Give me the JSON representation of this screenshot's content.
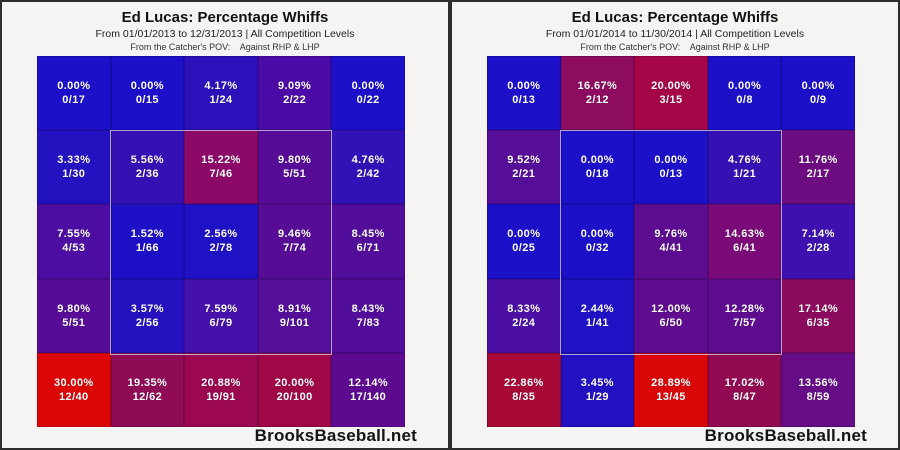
{
  "footer_brand": "BrooksBaseball.net",
  "colors": {
    "low_blue": "#1c10c9",
    "mid_purple": "#5e0c8f",
    "high_red": "#dd0606",
    "panel_bg": "#f5f4f3",
    "panel_border": "#2d2d2d",
    "strike_zone_outline": "#dad5e8",
    "cell_text": "#ffffff"
  },
  "chart_data": [
    {
      "type": "heatmap",
      "title": "Ed Lucas: Percentage Whiffs",
      "subtitle": "From 01/01/2013 to 12/31/2013 | All Competition Levels",
      "pov_line": "From the Catcher's POV:    Against RHP & LHP",
      "rows": 5,
      "cols": 5,
      "legend": "cells show whiff percentage and whiffs/pitches, blue=low red=high, strike zone outlined over center 3x3",
      "cells": [
        [
          {
            "pct": "0.00%",
            "frac": "0/17",
            "value": 0.0,
            "color": "#1c10c9"
          },
          {
            "pct": "0.00%",
            "frac": "0/15",
            "value": 0.0,
            "color": "#1c10c9"
          },
          {
            "pct": "4.17%",
            "frac": "1/24",
            "value": 4.17,
            "color": "#2c11ba"
          },
          {
            "pct": "9.09%",
            "frac": "2/22",
            "value": 9.09,
            "color": "#4c0ba6"
          },
          {
            "pct": "0.00%",
            "frac": "0/22",
            "value": 0.0,
            "color": "#1c10c9"
          }
        ],
        [
          {
            "pct": "3.33%",
            "frac": "1/30",
            "value": 3.33,
            "color": "#2411c0"
          },
          {
            "pct": "5.56%",
            "frac": "2/36",
            "value": 5.56,
            "color": "#3511b3"
          },
          {
            "pct": "15.22%",
            "frac": "7/46",
            "value": 15.22,
            "color": "#8c0968"
          },
          {
            "pct": "9.80%",
            "frac": "5/51",
            "value": 9.8,
            "color": "#560c97"
          },
          {
            "pct": "4.76%",
            "frac": "2/42",
            "value": 4.76,
            "color": "#3112b6"
          }
        ],
        [
          {
            "pct": "7.55%",
            "frac": "4/53",
            "value": 7.55,
            "color": "#4e0da2"
          },
          {
            "pct": "1.52%",
            "frac": "1/66",
            "value": 1.52,
            "color": "#1d10c7"
          },
          {
            "pct": "2.56%",
            "frac": "2/78",
            "value": 2.56,
            "color": "#1f11c4"
          },
          {
            "pct": "9.46%",
            "frac": "7/74",
            "value": 9.46,
            "color": "#570c95"
          },
          {
            "pct": "8.45%",
            "frac": "6/71",
            "value": 8.45,
            "color": "#530d9b"
          }
        ],
        [
          {
            "pct": "9.80%",
            "frac": "5/51",
            "value": 9.8,
            "color": "#560c97"
          },
          {
            "pct": "3.57%",
            "frac": "2/56",
            "value": 3.57,
            "color": "#2511c0"
          },
          {
            "pct": "7.59%",
            "frac": "6/79",
            "value": 7.59,
            "color": "#4510ab"
          },
          {
            "pct": "8.91%",
            "frac": "9/101",
            "value": 8.91,
            "color": "#540e99"
          },
          {
            "pct": "8.43%",
            "frac": "7/83",
            "value": 8.43,
            "color": "#530d9b"
          }
        ],
        [
          {
            "pct": "30.00%",
            "frac": "12/40",
            "value": 30.0,
            "color": "#dd0606"
          },
          {
            "pct": "19.35%",
            "frac": "12/62",
            "value": 19.35,
            "color": "#8f0b55"
          },
          {
            "pct": "20.88%",
            "frac": "19/91",
            "value": 20.88,
            "color": "#9b0850"
          },
          {
            "pct": "20.00%",
            "frac": "20/100",
            "value": 20.0,
            "color": "#a00747"
          },
          {
            "pct": "12.14%",
            "frac": "17/140",
            "value": 12.14,
            "color": "#5e0a90"
          }
        ]
      ]
    },
    {
      "type": "heatmap",
      "title": "Ed Lucas: Percentage Whiffs",
      "subtitle": "From 01/01/2014 to 11/30/2014 | All Competition Levels",
      "pov_line": "From the Catcher's POV:    Against RHP & LHP",
      "rows": 5,
      "cols": 5,
      "legend": "cells show whiff percentage and whiffs/pitches, blue=low red=high, strike zone outlined over center 3x3",
      "cells": [
        [
          {
            "pct": "0.00%",
            "frac": "0/13",
            "value": 0.0,
            "color": "#1c10c9"
          },
          {
            "pct": "16.67%",
            "frac": "2/12",
            "value": 16.67,
            "color": "#8e0c5f"
          },
          {
            "pct": "20.00%",
            "frac": "3/15",
            "value": 20.0,
            "color": "#a40647"
          },
          {
            "pct": "0.00%",
            "frac": "0/8",
            "value": 0.0,
            "color": "#1c10c9"
          },
          {
            "pct": "0.00%",
            "frac": "0/9",
            "value": 0.0,
            "color": "#1c10c9"
          }
        ],
        [
          {
            "pct": "9.52%",
            "frac": "2/21",
            "value": 9.52,
            "color": "#560d97"
          },
          {
            "pct": "0.00%",
            "frac": "0/18",
            "value": 0.0,
            "color": "#1c10c9"
          },
          {
            "pct": "0.00%",
            "frac": "0/13",
            "value": 0.0,
            "color": "#1c10c9"
          },
          {
            "pct": "4.76%",
            "frac": "1/21",
            "value": 4.76,
            "color": "#3510b3"
          },
          {
            "pct": "11.76%",
            "frac": "2/17",
            "value": 11.76,
            "color": "#6d0b80"
          }
        ],
        [
          {
            "pct": "0.00%",
            "frac": "0/25",
            "value": 0.0,
            "color": "#1c10c9"
          },
          {
            "pct": "0.00%",
            "frac": "0/32",
            "value": 0.0,
            "color": "#1c10c9"
          },
          {
            "pct": "9.76%",
            "frac": "4/41",
            "value": 9.76,
            "color": "#5c0c90"
          },
          {
            "pct": "14.63%",
            "frac": "6/41",
            "value": 14.63,
            "color": "#7a0a78"
          },
          {
            "pct": "7.14%",
            "frac": "2/28",
            "value": 7.14,
            "color": "#3d10af"
          }
        ],
        [
          {
            "pct": "8.33%",
            "frac": "2/24",
            "value": 8.33,
            "color": "#4b0fa6"
          },
          {
            "pct": "2.44%",
            "frac": "1/41",
            "value": 2.44,
            "color": "#1f11c4"
          },
          {
            "pct": "12.00%",
            "frac": "6/50",
            "value": 12.0,
            "color": "#600c8e"
          },
          {
            "pct": "12.28%",
            "frac": "7/57",
            "value": 12.28,
            "color": "#5e0c8f"
          },
          {
            "pct": "17.14%",
            "frac": "6/35",
            "value": 17.14,
            "color": "#8b0a5e"
          }
        ],
        [
          {
            "pct": "22.86%",
            "frac": "8/35",
            "value": 22.86,
            "color": "#a80836"
          },
          {
            "pct": "3.45%",
            "frac": "1/29",
            "value": 3.45,
            "color": "#2311c1"
          },
          {
            "pct": "28.89%",
            "frac": "13/45",
            "value": 28.89,
            "color": "#d90707"
          },
          {
            "pct": "17.02%",
            "frac": "8/47",
            "value": 17.02,
            "color": "#920b52"
          },
          {
            "pct": "13.56%",
            "frac": "8/59",
            "value": 13.56,
            "color": "#670c87"
          }
        ]
      ]
    }
  ]
}
